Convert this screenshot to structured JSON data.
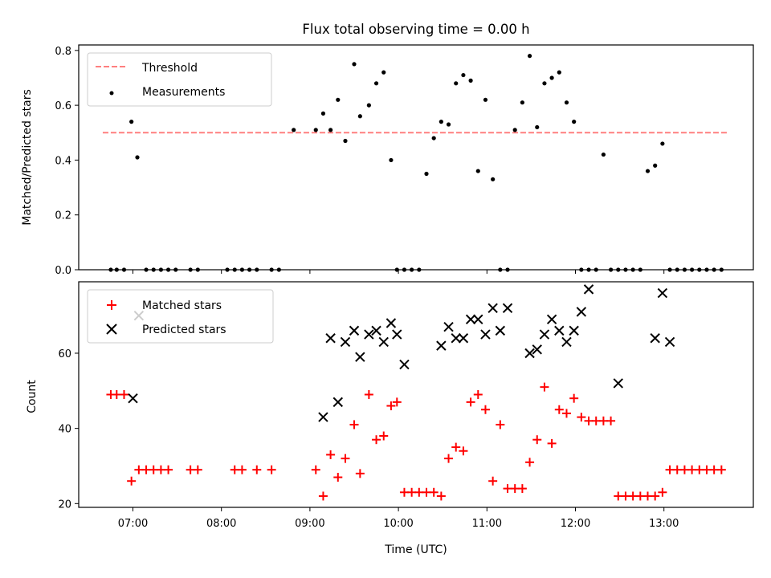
{
  "chart_data": [
    {
      "type": "scatter",
      "title": "Flux total observing time = 0.00 h",
      "ylabel": "Matched/Predicted stars",
      "ylim": [
        0,
        0.82
      ],
      "yticks": [
        "0.0",
        "0.2",
        "0.4",
        "0.6",
        "0.8"
      ],
      "threshold": 0.5,
      "legend": [
        "Threshold",
        "Measurements"
      ],
      "legend_position": "upper-left",
      "series": [
        {
          "name": "Measurements",
          "color": "#000000",
          "x": [
            "06:45",
            "06:49",
            "06:54",
            "06:59",
            "07:03",
            "07:09",
            "07:14",
            "07:19",
            "07:24",
            "07:29",
            "07:39",
            "07:44",
            "08:04",
            "08:09",
            "08:14",
            "08:19",
            "08:24",
            "08:34",
            "08:39",
            "08:49",
            "09:04",
            "09:09",
            "09:14",
            "09:19",
            "09:24",
            "09:30",
            "09:34",
            "09:40",
            "09:45",
            "09:50",
            "09:55",
            "09:59",
            "10:04",
            "10:09",
            "10:14",
            "10:19",
            "10:24",
            "10:29",
            "10:34",
            "10:39",
            "10:44",
            "10:49",
            "10:54",
            "10:59",
            "11:04",
            "11:09",
            "11:14",
            "11:19",
            "11:24",
            "11:29",
            "11:34",
            "11:39",
            "11:44",
            "11:49",
            "11:54",
            "11:59",
            "12:04",
            "12:09",
            "12:14",
            "12:19",
            "12:24",
            "12:29",
            "12:34",
            "12:39",
            "12:44",
            "12:49",
            "12:54",
            "12:59",
            "13:04",
            "13:09",
            "13:14",
            "13:19",
            "13:24",
            "13:29",
            "13:34",
            "13:39"
          ],
          "y": [
            0,
            0,
            0,
            0.54,
            0.41,
            0,
            0,
            0,
            0,
            0,
            0,
            0,
            0,
            0,
            0,
            0,
            0,
            0,
            0,
            0.51,
            0.51,
            0.57,
            0.51,
            0.62,
            0.47,
            0.75,
            0.56,
            0.6,
            0.68,
            0.72,
            0.4,
            0,
            0,
            0,
            0,
            0.35,
            0.48,
            0.54,
            0.53,
            0.68,
            0.71,
            0.69,
            0.36,
            0.62,
            0.33,
            0,
            0,
            0.51,
            0.61,
            0.78,
            0.52,
            0.68,
            0.7,
            0.72,
            0.61,
            0.54,
            0,
            0,
            0,
            0.42,
            0,
            0,
            0,
            0,
            0,
            0.36,
            0.38,
            0.46,
            0,
            0,
            0,
            0,
            0,
            0,
            0,
            0
          ]
        }
      ]
    },
    {
      "type": "scatter",
      "xlabel": "Time (UTC)",
      "ylabel": "Count",
      "ylim": [
        19,
        79
      ],
      "yticks": [
        "20",
        "40",
        "60"
      ],
      "xticks": [
        "07:00",
        "08:00",
        "09:00",
        "10:00",
        "11:00",
        "12:00",
        "13:00"
      ],
      "legend": [
        "Matched stars",
        "Predicted stars"
      ],
      "legend_position": "upper-left",
      "series": [
        {
          "name": "Matched stars",
          "color": "#ff0000",
          "marker": "+",
          "x": [
            "06:45",
            "06:49",
            "06:54",
            "06:59",
            "07:04",
            "07:09",
            "07:14",
            "07:19",
            "07:24",
            "07:39",
            "07:44",
            "08:09",
            "08:14",
            "08:24",
            "08:34",
            "09:04",
            "09:09",
            "09:14",
            "09:19",
            "09:24",
            "09:30",
            "09:34",
            "09:40",
            "09:45",
            "09:50",
            "09:55",
            "09:59",
            "10:04",
            "10:09",
            "10:14",
            "10:19",
            "10:24",
            "10:29",
            "10:34",
            "10:39",
            "10:44",
            "10:49",
            "10:54",
            "10:59",
            "11:04",
            "11:09",
            "11:14",
            "11:19",
            "11:24",
            "11:29",
            "11:34",
            "11:39",
            "11:44",
            "11:49",
            "11:54",
            "11:59",
            "12:04",
            "12:09",
            "12:14",
            "12:19",
            "12:24",
            "12:29",
            "12:34",
            "12:39",
            "12:44",
            "12:49",
            "12:54",
            "12:59",
            "13:04",
            "13:09",
            "13:14",
            "13:19",
            "13:24",
            "13:29",
            "13:34",
            "13:39"
          ],
          "y": [
            49,
            49,
            49,
            26,
            29,
            29,
            29,
            29,
            29,
            29,
            29,
            29,
            29,
            29,
            29,
            29,
            22,
            33,
            27,
            32,
            41,
            28,
            49,
            37,
            38,
            46,
            47,
            23,
            23,
            23,
            23,
            23,
            22,
            32,
            35,
            34,
            47,
            49,
            45,
            26,
            41,
            24,
            24,
            24,
            31,
            37,
            51,
            36,
            45,
            44,
            48,
            43,
            42,
            42,
            42,
            42,
            22,
            22,
            22,
            22,
            22,
            22,
            23,
            29,
            29,
            29,
            29,
            29,
            29,
            29,
            29
          ]
        },
        {
          "name": "Predicted stars",
          "color": "#000000",
          "marker": "x",
          "x": [
            "07:00",
            "07:04",
            "09:09",
            "09:14",
            "09:19",
            "09:24",
            "09:30",
            "09:34",
            "09:40",
            "09:45",
            "09:50",
            "09:55",
            "09:59",
            "10:04",
            "10:29",
            "10:34",
            "10:39",
            "10:44",
            "10:49",
            "10:54",
            "10:59",
            "11:04",
            "11:09",
            "11:14",
            "11:29",
            "11:34",
            "11:39",
            "11:44",
            "11:49",
            "11:54",
            "11:59",
            "12:04",
            "12:09",
            "12:29",
            "12:54",
            "12:59",
            "13:04"
          ],
          "y": [
            48,
            70,
            43,
            64,
            47,
            63,
            66,
            59,
            65,
            66,
            63,
            68,
            65,
            57,
            62,
            67,
            64,
            64,
            69,
            69,
            65,
            72,
            66,
            72,
            60,
            61,
            65,
            69,
            66,
            63,
            66,
            71,
            77,
            52,
            64,
            76,
            63
          ]
        }
      ]
    }
  ]
}
